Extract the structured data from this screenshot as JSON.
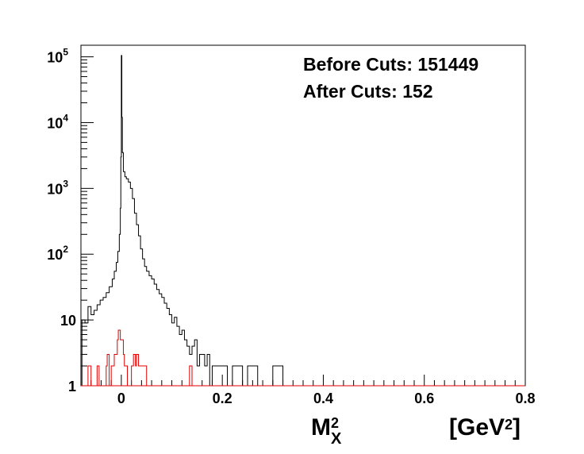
{
  "chart_data": {
    "type": "histogram",
    "xlim": [
      -0.08,
      0.8
    ],
    "ylim": [
      1,
      150000
    ],
    "yscale": "log",
    "grid": false,
    "legend_position": "top-right",
    "x_ticks": [
      {
        "value": 0,
        "label": "0"
      },
      {
        "value": 0.2,
        "label": "0.2"
      },
      {
        "value": 0.4,
        "label": "0.4"
      },
      {
        "value": 0.6,
        "label": "0.6"
      },
      {
        "value": 0.8,
        "label": "0.8"
      }
    ],
    "y_ticks": [
      {
        "value": 1,
        "label": "1",
        "exp": ""
      },
      {
        "value": 10,
        "label": "10",
        "exp": ""
      },
      {
        "value": 100,
        "label": "10",
        "exp": "2"
      },
      {
        "value": 1000,
        "label": "10",
        "exp": "3"
      },
      {
        "value": 10000,
        "label": "10",
        "exp": "4"
      },
      {
        "value": 100000,
        "label": "10",
        "exp": "5"
      }
    ],
    "x_title": {
      "main": "M",
      "sup": "2",
      "sub": "X"
    },
    "x_unit": {
      "prefix": "[GeV",
      "sup": "2",
      "suffix": "]"
    },
    "annotations": {
      "before": "Before Cuts: 151449",
      "after": "After Cuts: 152"
    },
    "series": [
      {
        "color": "#000000",
        "points": [
          [
            -0.078,
            10
          ],
          [
            -0.072,
            9
          ],
          [
            -0.066,
            16
          ],
          [
            -0.06,
            12
          ],
          [
            -0.054,
            14
          ],
          [
            -0.048,
            17
          ],
          [
            -0.042,
            20
          ],
          [
            -0.036,
            22
          ],
          [
            -0.03,
            26
          ],
          [
            -0.024,
            32
          ],
          [
            -0.018,
            42
          ],
          [
            -0.014,
            55
          ],
          [
            -0.01,
            75
          ],
          [
            -0.007,
            110
          ],
          [
            -0.004,
            200
          ],
          [
            -0.002,
            500
          ],
          [
            -0.001,
            3000
          ],
          [
            0,
            105000
          ],
          [
            0.001,
            12000
          ],
          [
            0.002,
            3500
          ],
          [
            0.004,
            1800
          ],
          [
            0.007,
            1500
          ],
          [
            0.01,
            1400
          ],
          [
            0.014,
            1250
          ],
          [
            0.018,
            1000
          ],
          [
            0.022,
            700
          ],
          [
            0.026,
            420
          ],
          [
            0.03,
            280
          ],
          [
            0.034,
            190
          ],
          [
            0.038,
            120
          ],
          [
            0.042,
            85
          ],
          [
            0.046,
            65
          ],
          [
            0.05,
            55
          ],
          [
            0.055,
            47
          ],
          [
            0.06,
            42
          ],
          [
            0.065,
            35
          ],
          [
            0.07,
            29
          ],
          [
            0.075,
            25
          ],
          [
            0.08,
            22
          ],
          [
            0.085,
            18
          ],
          [
            0.09,
            15
          ],
          [
            0.095,
            12
          ],
          [
            0.1,
            9
          ],
          [
            0.105,
            11
          ],
          [
            0.11,
            8
          ],
          [
            0.115,
            6
          ],
          [
            0.12,
            7
          ],
          [
            0.125,
            5
          ],
          [
            0.13,
            4
          ],
          [
            0.135,
            3
          ],
          [
            0.14,
            4
          ],
          [
            0.145,
            5
          ],
          [
            0.15,
            2
          ],
          [
            0.155,
            3
          ],
          [
            0.16,
            3
          ],
          [
            0.165,
            2
          ],
          [
            0.17,
            3
          ],
          [
            0.175,
            1
          ],
          [
            0.18,
            2
          ],
          [
            0.19,
            2
          ],
          [
            0.2,
            2
          ],
          [
            0.21,
            1
          ],
          [
            0.22,
            2
          ],
          [
            0.24,
            1
          ],
          [
            0.25,
            2
          ],
          [
            0.27,
            1
          ],
          [
            0.3,
            2
          ],
          [
            0.32,
            1
          ],
          [
            0.35,
            1
          ],
          [
            0.38,
            1
          ],
          [
            0.42,
            1
          ],
          [
            0.6,
            1
          ]
        ]
      },
      {
        "color": "#e00000",
        "points": [
          [
            -0.07,
            1
          ],
          [
            -0.066,
            2
          ],
          [
            -0.06,
            1
          ],
          [
            -0.048,
            2
          ],
          [
            -0.044,
            1
          ],
          [
            -0.03,
            2
          ],
          [
            -0.028,
            3
          ],
          [
            -0.024,
            1
          ],
          [
            -0.02,
            2
          ],
          [
            -0.014,
            3
          ],
          [
            -0.01,
            3
          ],
          [
            -0.008,
            5
          ],
          [
            -0.006,
            7
          ],
          [
            -0.004,
            7
          ],
          [
            -0.002,
            5
          ],
          [
            0.002,
            5
          ],
          [
            0.004,
            3
          ],
          [
            0.006,
            2
          ],
          [
            0.012,
            1
          ],
          [
            0.02,
            2
          ],
          [
            0.024,
            3
          ],
          [
            0.028,
            2
          ],
          [
            0.03,
            3
          ],
          [
            0.034,
            2
          ],
          [
            0.05,
            1
          ],
          [
            0.135,
            2
          ],
          [
            0.14,
            1
          ]
        ]
      }
    ]
  }
}
